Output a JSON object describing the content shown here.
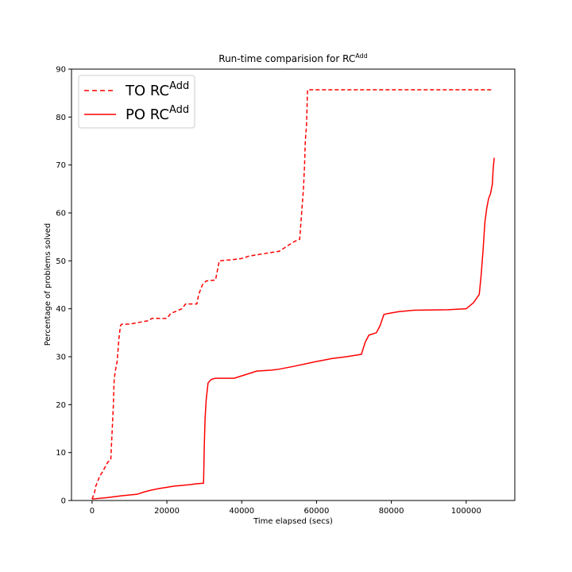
{
  "chart_data": {
    "type": "line",
    "title": "Run-time comparision for RC",
    "title_superscript": "Add",
    "xlabel": "Time elapsed (secs)",
    "ylabel": "Percentage of problems solved",
    "xlim": [
      -5500,
      113000
    ],
    "ylim": [
      0,
      90
    ],
    "xticks": [
      0,
      20000,
      40000,
      60000,
      80000,
      100000
    ],
    "xtick_labels": [
      "0",
      "20000",
      "40000",
      "60000",
      "80000",
      "100000"
    ],
    "yticks": [
      0,
      10,
      20,
      30,
      40,
      50,
      60,
      70,
      80,
      90
    ],
    "ytick_labels": [
      "0",
      "10",
      "20",
      "30",
      "40",
      "50",
      "60",
      "70",
      "80",
      "90"
    ],
    "grid": false,
    "legend_position": "top-left",
    "series": [
      {
        "name": "TO RC",
        "name_superscript": "Add",
        "color": "#ff0000",
        "dash": "dashed",
        "x": [
          0,
          600,
          1000,
          1500,
          2000,
          2800,
          3500,
          4200,
          5000,
          5700,
          5800,
          5900,
          6200,
          6700,
          7200,
          7600,
          8000,
          10000,
          15000,
          16000,
          20000,
          21000,
          24000,
          25000,
          28000,
          28500,
          29500,
          30500,
          33000,
          33500,
          34000,
          37000,
          40000,
          42000,
          50000,
          52000,
          54000,
          55500,
          56500,
          56800,
          57000,
          57300,
          57600,
          58000,
          70000,
          90000,
          107000
        ],
        "y": [
          0.3,
          1.5,
          3,
          4,
          5,
          6,
          7,
          8,
          8.5,
          20,
          23,
          25,
          27,
          29,
          34,
          36.5,
          36.8,
          36.8,
          37.5,
          38,
          38,
          39,
          40,
          41,
          41,
          43,
          45,
          45.8,
          46,
          48,
          50,
          50.2,
          50.5,
          51,
          52,
          53,
          54,
          54.5,
          65,
          70,
          75,
          78,
          85.7,
          85.7,
          85.7,
          85.7,
          85.7
        ]
      },
      {
        "name": "PO RC",
        "name_superscript": "Add",
        "color": "#ff0000",
        "dash": "solid",
        "x": [
          0,
          4000,
          8000,
          12000,
          14000,
          16000,
          18000,
          22000,
          26000,
          28000,
          29800,
          30000,
          30200,
          30500,
          31000,
          31500,
          32000,
          33000,
          38000,
          40000,
          42000,
          44000,
          48000,
          50000,
          54000,
          60000,
          62000,
          64000,
          68000,
          72000,
          73000,
          74000,
          76000,
          77000,
          78000,
          79000,
          82000,
          86000,
          95000,
          100000,
          102000,
          103500,
          104000,
          104500,
          105000,
          105500,
          106000,
          106500,
          107000,
          107200,
          107500
        ],
        "y": [
          0.3,
          0.6,
          1,
          1.3,
          1.8,
          2.2,
          2.5,
          3,
          3.3,
          3.5,
          3.6,
          11.5,
          17,
          21,
          24.5,
          25,
          25.3,
          25.5,
          25.5,
          26,
          26.5,
          27,
          27.2,
          27.4,
          28,
          29,
          29.3,
          29.6,
          30,
          30.5,
          33,
          34.5,
          35,
          36.5,
          38.8,
          39,
          39.4,
          39.7,
          39.8,
          40,
          41.3,
          43,
          47,
          52,
          58,
          61,
          63,
          64,
          66,
          69,
          71.5
        ]
      }
    ]
  }
}
